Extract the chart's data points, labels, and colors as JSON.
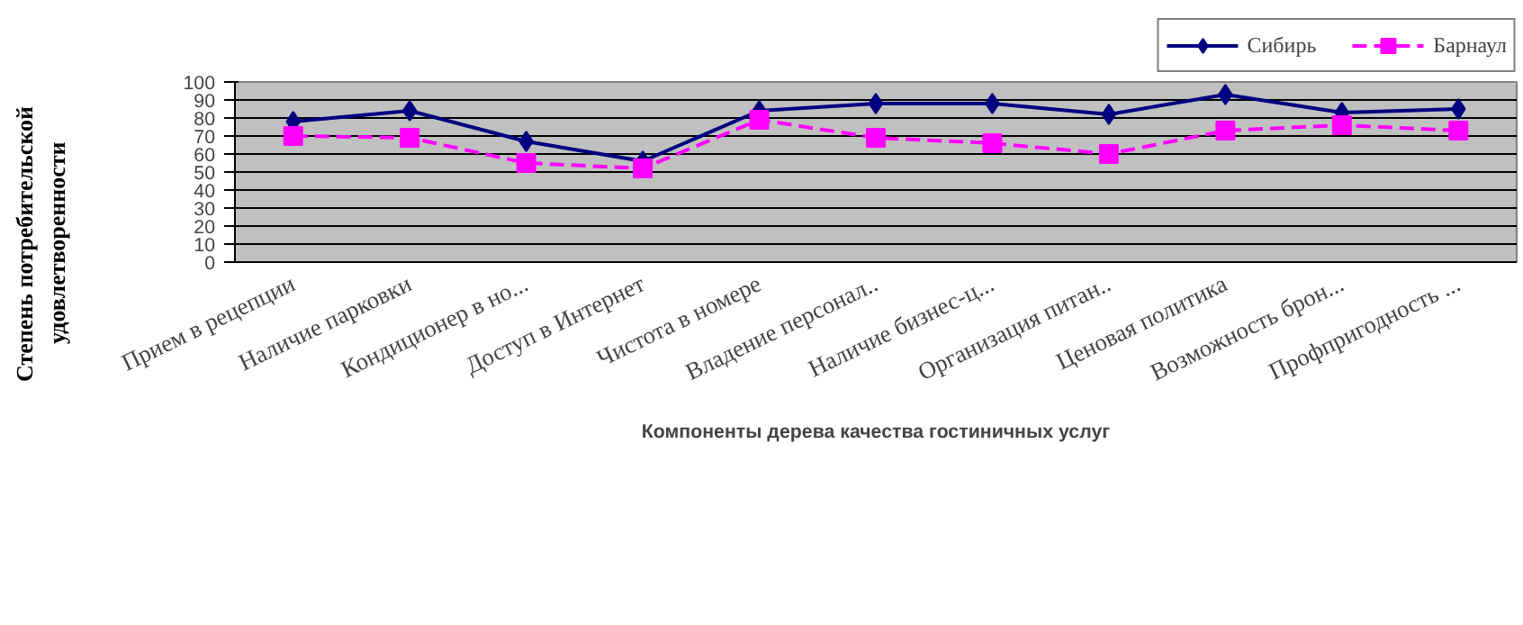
{
  "chart_data": {
    "type": "line",
    "xlabel": "Компоненты дерева качества гостиничных услуг",
    "ylabel": "Степень потребительской удовлетворенности",
    "categories": [
      "Прием в рецепции",
      "Наличие парковки",
      "Кондиционер в но...",
      "Доступ в Интернет",
      "Чистота в номере",
      "Владение персонал..",
      "Наличие бизнес-ц...",
      "Организация питан..",
      "Ценовая политика",
      "Возможность брон...",
      "Профпригодность ..."
    ],
    "series": [
      {
        "name": "Сибирь",
        "color": "#000080",
        "marker": "diamond",
        "line_style": "solid",
        "values": [
          78,
          84,
          67,
          56,
          84,
          88,
          88,
          82,
          93,
          83,
          85
        ]
      },
      {
        "name": "Барнаул",
        "color": "#ff00ff",
        "marker": "square",
        "line_style": "dashed",
        "values": [
          70,
          69,
          55,
          52,
          79,
          69,
          66,
          60,
          73,
          76,
          73
        ]
      }
    ],
    "ylim": [
      0,
      100
    ],
    "yticks": [
      0,
      10,
      20,
      30,
      40,
      50,
      60,
      70,
      80,
      90,
      100
    ],
    "grid": "y",
    "legend": "top right"
  }
}
